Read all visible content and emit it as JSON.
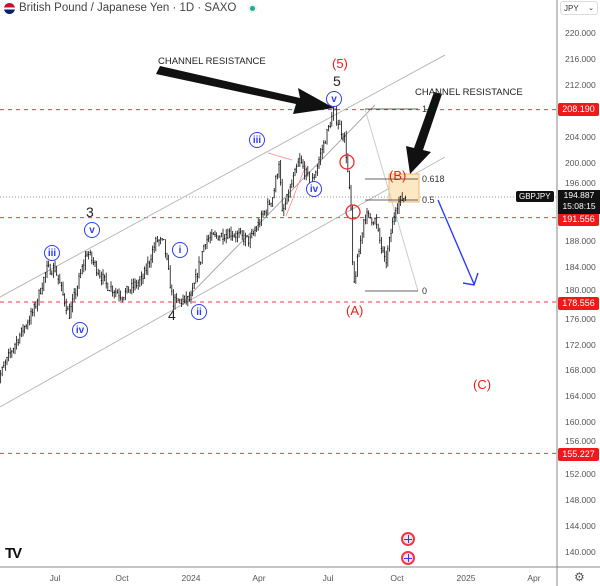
{
  "header": {
    "title": "British Pound / Japanese Yen · 1D · SAXO",
    "market_status": "open",
    "currency": "JPY"
  },
  "colors": {
    "accent_red": "#f01818",
    "wave_blue": "#2f3cf5",
    "candles": "#111111",
    "fib_box": "#fbd38d"
  },
  "annotations": {
    "channel_resistance_1": "CHANNEL RESISTANCE",
    "channel_resistance_2": "CHANNEL RESISTANCE",
    "wave_5_major": "(5)",
    "wave_5": "5",
    "wave_3": "3",
    "wave_4": "4",
    "wave_A": "(A)",
    "wave_B": "(B)",
    "wave_C": "(C)",
    "minor": {
      "v_top": "v",
      "iii_top": "iii",
      "iv_top": "iv",
      "v_left": "v",
      "iii_left": "iii",
      "iv_left": "iv",
      "i": "i",
      "ii": "ii"
    }
  },
  "fibonacci": [
    {
      "level": "1"
    },
    {
      "level": "0.618"
    },
    {
      "level": "0.5"
    },
    {
      "level": "0"
    }
  ],
  "price_badges": {
    "top": "208.190",
    "mid": "191.556",
    "low": "178.556",
    "bottom": "155.227"
  },
  "last_price": {
    "symbol": "GBPJPY",
    "price": "194.887",
    "countdown": "15:08:15"
  },
  "chart_data": {
    "type": "candlestick",
    "title": "British Pound / Japanese Yen · 1D · SAXO",
    "ylim": [
      138,
      222
    ],
    "y_ticks": [
      "220.000",
      "216.000",
      "212.000",
      "204.000",
      "200.000",
      "196.000",
      "188.000",
      "184.000",
      "180.000",
      "176.000",
      "172.000",
      "168.000",
      "164.000",
      "160.000",
      "156.000",
      "152.000",
      "148.000",
      "144.000",
      "140.000"
    ],
    "x_ticks": [
      "Jul",
      "Oct",
      "2024",
      "Apr",
      "Jul",
      "Oct",
      "2025",
      "Apr"
    ],
    "horizontal_levels": [
      208.19,
      191.556,
      178.556,
      155.227
    ],
    "series_approx_close": [
      [
        "2023-04-15",
        165.8
      ],
      [
        "2023-05-10",
        172.0
      ],
      [
        "2023-06-05",
        177.3
      ],
      [
        "2023-06-22",
        183.5
      ],
      [
        "2023-07-03",
        183.8
      ],
      [
        "2023-07-22",
        176.5
      ],
      [
        "2023-08-15",
        186.3
      ],
      [
        "2023-09-10",
        181.2
      ],
      [
        "2023-10-01",
        179.6
      ],
      [
        "2023-10-28",
        182.0
      ],
      [
        "2023-11-16",
        188.1
      ],
      [
        "2023-11-26",
        187.5
      ],
      [
        "2023-12-08",
        178.5
      ],
      [
        "2024-01-01",
        179.0
      ],
      [
        "2024-01-20",
        188.1
      ],
      [
        "2024-02-22",
        189.3
      ],
      [
        "2024-03-20",
        188.0
      ],
      [
        "2024-04-20",
        195.0
      ],
      [
        "2024-04-28",
        200.4
      ],
      [
        "2024-05-02",
        192.0
      ],
      [
        "2024-05-25",
        200.4
      ],
      [
        "2024-06-10",
        196.6
      ],
      [
        "2024-07-10",
        208.0
      ],
      [
        "2024-07-25",
        203.5
      ],
      [
        "2024-08-02",
        192.7
      ],
      [
        "2024-08-05",
        180.4
      ],
      [
        "2024-08-20",
        192.0
      ],
      [
        "2024-09-03",
        191.2
      ],
      [
        "2024-09-17",
        184.3
      ],
      [
        "2024-10-01",
        193.5
      ],
      [
        "2024-10-14",
        194.887
      ]
    ]
  }
}
